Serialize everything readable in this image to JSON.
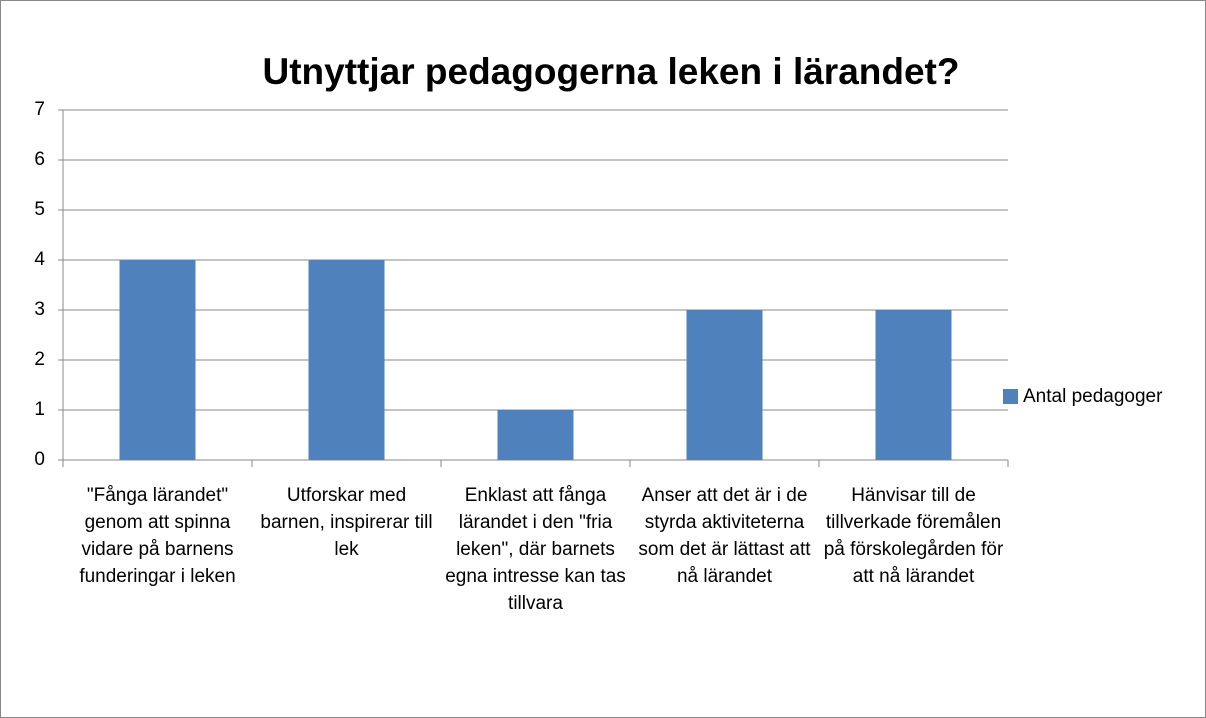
{
  "chart_data": {
    "type": "bar",
    "title": "Utnyttjar pedagogerna leken i lärandet?",
    "categories": [
      "\"Fånga lärandet\" genom att spinna vidare på barnens funderingar i leken",
      "Utforskar med barnen, inspirerar till lek",
      "Enklast att fånga lärandet i den \"fria leken\", där barnets egna intresse kan tas tillvara",
      "Anser att det är i de styrda aktiviteterna som det är lättast att nå lärandet",
      "Hänvisar till de tillverkade föremålen på förskolegården för att nå lärandet"
    ],
    "series": [
      {
        "name": "Antal pedagoger",
        "color": "#4f81bd",
        "values": [
          4,
          4,
          1,
          3,
          3
        ]
      }
    ],
    "ylim": [
      0,
      7
    ],
    "yticks": [
      0,
      1,
      2,
      3,
      4,
      5,
      6,
      7
    ],
    "grid": true,
    "legend": "right"
  }
}
